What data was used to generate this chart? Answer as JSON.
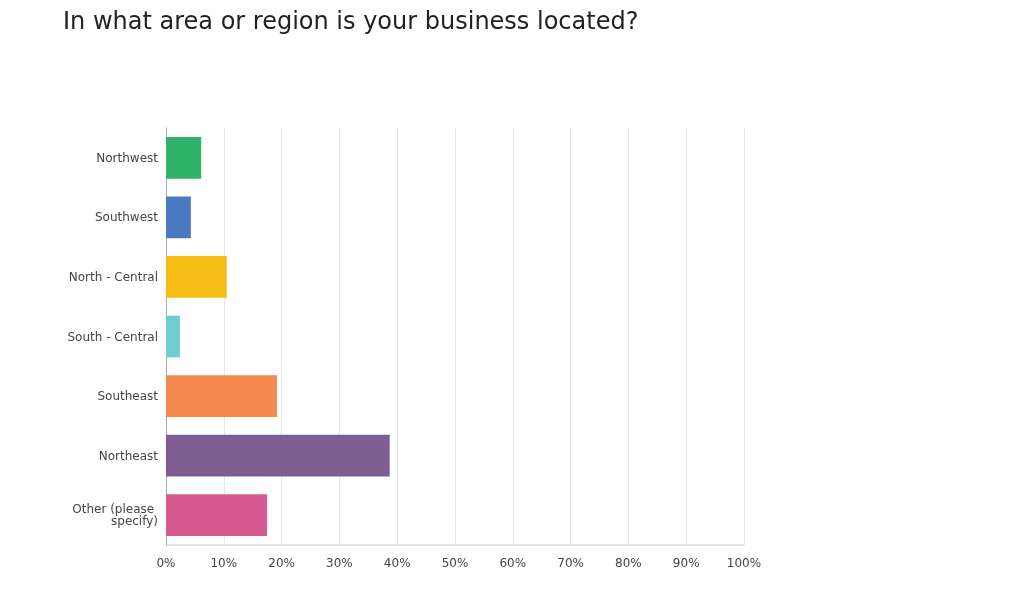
{
  "chart_data": {
    "type": "bar",
    "orientation": "horizontal",
    "title": "In what area or region is your business located?",
    "categories": [
      "Northwest",
      "Southwest",
      "North - Central",
      "South - Central",
      "Southeast",
      "Northeast",
      "Other (please specify)"
    ],
    "values": [
      6.1,
      4.3,
      10.5,
      2.4,
      19.2,
      38.7,
      17.5
    ],
    "colors": [
      "#2fb36b",
      "#4a7ac1",
      "#f7bb16",
      "#6dcdd1",
      "#f58a50",
      "#7e5e92",
      "#d65a8f"
    ],
    "xlim": [
      0,
      100
    ],
    "xticks": [
      {
        "value": 0,
        "label": "0%"
      },
      {
        "value": 10,
        "label": "10%"
      },
      {
        "value": 20,
        "label": "20%"
      },
      {
        "value": 30,
        "label": "30%"
      },
      {
        "value": 40,
        "label": "40%"
      },
      {
        "value": 50,
        "label": "50%"
      },
      {
        "value": 60,
        "label": "60%"
      },
      {
        "value": 70,
        "label": "70%"
      },
      {
        "value": 80,
        "label": "80%"
      },
      {
        "value": 90,
        "label": "90%"
      },
      {
        "value": 100,
        "label": "100%"
      }
    ],
    "grid": "x"
  }
}
